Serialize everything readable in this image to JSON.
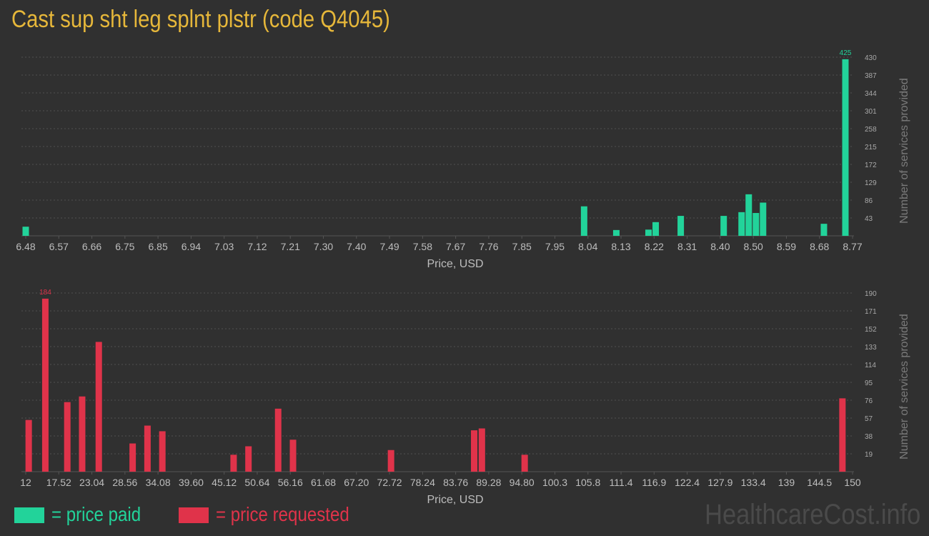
{
  "title": "Cast sup sht leg splnt plstr (code Q4045)",
  "colors": {
    "paid": "#22d39a",
    "requested": "#e0334a",
    "title": "#e6b73a"
  },
  "legend": {
    "paid_label": "= price paid",
    "requested_label": "= price requested"
  },
  "watermark": "HealthcareCost.info",
  "chart_data": [
    {
      "type": "bar",
      "xlabel": "Price, USD",
      "ylabel": "Number of services provided",
      "x_ticks": [
        "6.48",
        "6.57",
        "6.66",
        "6.75",
        "6.85",
        "6.94",
        "7.03",
        "7.12",
        "7.21",
        "7.30",
        "7.40",
        "7.49",
        "7.58",
        "7.67",
        "7.76",
        "7.85",
        "7.95",
        "8.04",
        "8.13",
        "8.22",
        "8.31",
        "8.40",
        "8.50",
        "8.59",
        "8.68",
        "8.77"
      ],
      "y_ticks": [
        "43",
        "86",
        "129",
        "172",
        "215",
        "258",
        "301",
        "344",
        "387",
        "430"
      ],
      "ylim": [
        0,
        430
      ],
      "xlim": [
        6.48,
        8.77
      ],
      "peak_label": "425",
      "grid": true,
      "color": "#22d39a",
      "bars": [
        {
          "x": 6.48,
          "y": 22
        },
        {
          "x": 8.04,
          "y": 71
        },
        {
          "x": 8.13,
          "y": 14
        },
        {
          "x": 8.22,
          "y": 15
        },
        {
          "x": 8.24,
          "y": 33
        },
        {
          "x": 8.31,
          "y": 48
        },
        {
          "x": 8.43,
          "y": 48
        },
        {
          "x": 8.48,
          "y": 57
        },
        {
          "x": 8.5,
          "y": 100
        },
        {
          "x": 8.52,
          "y": 55
        },
        {
          "x": 8.54,
          "y": 80
        },
        {
          "x": 8.71,
          "y": 29
        },
        {
          "x": 8.77,
          "y": 425
        }
      ]
    },
    {
      "type": "bar",
      "xlabel": "Price, USD",
      "ylabel": "Number of services provided",
      "x_ticks": [
        "12",
        "17.52",
        "23.04",
        "28.56",
        "34.08",
        "39.60",
        "45.12",
        "50.64",
        "56.16",
        "61.68",
        "67.20",
        "72.72",
        "78.24",
        "83.76",
        "89.28",
        "94.80",
        "100.3",
        "105.8",
        "111.4",
        "116.9",
        "122.4",
        "127.9",
        "133.4",
        "139",
        "144.5",
        "150"
      ],
      "y_ticks": [
        "19",
        "38",
        "57",
        "76",
        "95",
        "114",
        "133",
        "152",
        "171",
        "190"
      ],
      "ylim": [
        0,
        190
      ],
      "xlim": [
        12,
        150
      ],
      "peak_label": "184",
      "grid": true,
      "color": "#e0334a",
      "bars": [
        {
          "x": 12.5,
          "y": 55
        },
        {
          "x": 15.3,
          "y": 184
        },
        {
          "x": 19.0,
          "y": 74
        },
        {
          "x": 21.5,
          "y": 80
        },
        {
          "x": 24.3,
          "y": 138
        },
        {
          "x": 30.0,
          "y": 30
        },
        {
          "x": 32.5,
          "y": 49
        },
        {
          "x": 35.0,
          "y": 43
        },
        {
          "x": 47.0,
          "y": 18
        },
        {
          "x": 49.5,
          "y": 27
        },
        {
          "x": 54.5,
          "y": 67
        },
        {
          "x": 57.0,
          "y": 34
        },
        {
          "x": 73.5,
          "y": 23
        },
        {
          "x": 87.5,
          "y": 44
        },
        {
          "x": 88.8,
          "y": 46
        },
        {
          "x": 96.0,
          "y": 18
        },
        {
          "x": 149.5,
          "y": 78
        }
      ]
    }
  ]
}
